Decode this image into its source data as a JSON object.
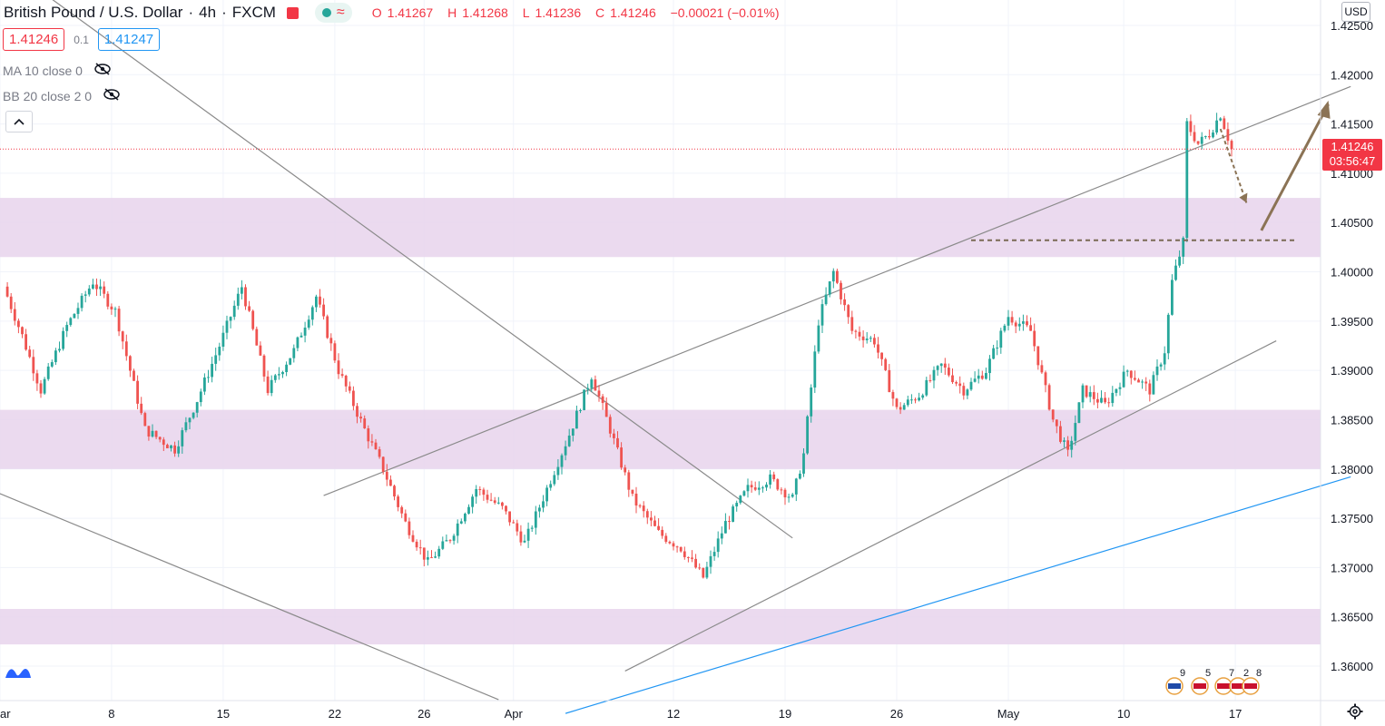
{
  "header": {
    "symbol": "British Pound / U.S. Dollar",
    "interval": "4h",
    "exchange": "FXCM",
    "wave_icon": "≈",
    "open_label": "O",
    "open": "1.41267",
    "high_label": "H",
    "high": "1.41268",
    "low_label": "L",
    "low": "1.41236",
    "close_label": "C",
    "close": "1.41246",
    "change": "−0.00021 (−0.01%)"
  },
  "quote": {
    "bid": "1.41246",
    "spread": "0.1",
    "ask": "1.41247"
  },
  "indicators": [
    {
      "label": "MA 10 close 0",
      "icon": "eye-off-icon"
    },
    {
      "label": "BB 20 close 2 0",
      "icon": "eye-off-icon"
    }
  ],
  "collapse_icon": "chevron-up-icon",
  "currency_button": "USD",
  "last_price": {
    "price": "1.41246",
    "countdown": "03:56:47"
  },
  "events": [
    "9",
    "5",
    "7",
    "2",
    "8"
  ],
  "colors": {
    "up": "#26a69a",
    "down": "#ef5350",
    "zone": "#e8d3ec",
    "trendline": "#8a8a8a",
    "channel_blue": "#2196f3",
    "arrow": "#8b7355",
    "last_price": "#f23645"
  },
  "chart_data": {
    "type": "candlestick",
    "title": "British Pound / U.S. Dollar",
    "timeframe": "4h",
    "x_tick_labels": [
      "ar",
      "8",
      "15",
      "22",
      "26",
      "Apr",
      "12",
      "19",
      "26",
      "May",
      "10",
      "17"
    ],
    "y_tick_labels": [
      "1.42500",
      "1.42000",
      "1.41500",
      "1.41000",
      "1.40500",
      "1.40000",
      "1.39500",
      "1.39000",
      "1.38500",
      "1.38000",
      "1.37500",
      "1.37000",
      "1.36500",
      "1.36000"
    ],
    "ylim": [
      1.3575,
      1.426
    ],
    "grid": true,
    "zones": [
      {
        "from": 1.4015,
        "to": 1.4075
      },
      {
        "from": 1.38,
        "to": 1.386
      },
      {
        "from": 1.3622,
        "to": 1.3658
      }
    ],
    "horizontal_levels": [
      {
        "price": 1.4032,
        "style": "dashed"
      }
    ],
    "last_price": 1.41246,
    "price_path": [
      {
        "t": 0,
        "p": 1.3985
      },
      {
        "t": 5,
        "p": 1.3935
      },
      {
        "t": 10,
        "p": 1.388
      },
      {
        "t": 17,
        "p": 1.3945
      },
      {
        "t": 24,
        "p": 1.399
      },
      {
        "t": 30,
        "p": 1.396
      },
      {
        "t": 38,
        "p": 1.384
      },
      {
        "t": 46,
        "p": 1.382
      },
      {
        "t": 52,
        "p": 1.387
      },
      {
        "t": 58,
        "p": 1.3925
      },
      {
        "t": 64,
        "p": 1.3985
      },
      {
        "t": 71,
        "p": 1.388
      },
      {
        "t": 78,
        "p": 1.392
      },
      {
        "t": 84,
        "p": 1.3975
      },
      {
        "t": 90,
        "p": 1.39
      },
      {
        "t": 97,
        "p": 1.384
      },
      {
        "t": 102,
        "p": 1.38
      },
      {
        "t": 108,
        "p": 1.3745
      },
      {
        "t": 114,
        "p": 1.3705
      },
      {
        "t": 120,
        "p": 1.373
      },
      {
        "t": 127,
        "p": 1.378
      },
      {
        "t": 134,
        "p": 1.376
      },
      {
        "t": 140,
        "p": 1.3725
      },
      {
        "t": 146,
        "p": 1.378
      },
      {
        "t": 152,
        "p": 1.3835
      },
      {
        "t": 158,
        "p": 1.3895
      },
      {
        "t": 163,
        "p": 1.384
      },
      {
        "t": 169,
        "p": 1.377
      },
      {
        "t": 176,
        "p": 1.3735
      },
      {
        "t": 182,
        "p": 1.372
      },
      {
        "t": 188,
        "p": 1.369
      },
      {
        "t": 194,
        "p": 1.3745
      },
      {
        "t": 200,
        "p": 1.378
      },
      {
        "t": 206,
        "p": 1.379
      },
      {
        "t": 212,
        "p": 1.377
      },
      {
        "t": 215,
        "p": 1.3815
      },
      {
        "t": 219,
        "p": 1.395
      },
      {
        "t": 223,
        "p": 1.4
      },
      {
        "t": 228,
        "p": 1.394
      },
      {
        "t": 234,
        "p": 1.393
      },
      {
        "t": 240,
        "p": 1.386
      },
      {
        "t": 246,
        "p": 1.3875
      },
      {
        "t": 252,
        "p": 1.3905
      },
      {
        "t": 258,
        "p": 1.388
      },
      {
        "t": 264,
        "p": 1.39
      },
      {
        "t": 270,
        "p": 1.3955
      },
      {
        "t": 276,
        "p": 1.394
      },
      {
        "t": 282,
        "p": 1.385
      },
      {
        "t": 286,
        "p": 1.3815
      },
      {
        "t": 290,
        "p": 1.388
      },
      {
        "t": 296,
        "p": 1.3865
      },
      {
        "t": 302,
        "p": 1.39
      },
      {
        "t": 308,
        "p": 1.388
      },
      {
        "t": 312,
        "p": 1.392
      },
      {
        "t": 314,
        "p": 1.399
      },
      {
        "t": 317,
        "p": 1.403
      },
      {
        "t": 318,
        "p": 1.415
      },
      {
        "t": 321,
        "p": 1.413
      },
      {
        "t": 324,
        "p": 1.414
      },
      {
        "t": 327,
        "p": 1.416
      },
      {
        "t": 330,
        "p": 1.41246
      }
    ],
    "trendlines": [
      {
        "from": [
          -1,
          1.4315
        ],
        "to": [
          212,
          1.373
        ],
        "color": "gray"
      },
      {
        "from": [
          -1,
          1.3775
        ],
        "to": [
          133,
          1.3566
        ],
        "color": "gray"
      },
      {
        "from": [
          86,
          1.3773
        ],
        "to": [
          362,
          1.4188
        ],
        "color": "gray"
      },
      {
        "from": [
          167,
          1.3595
        ],
        "to": [
          342,
          1.393
        ],
        "color": "gray"
      },
      {
        "from": [
          151,
          1.3552
        ],
        "to": [
          362,
          1.3792
        ],
        "color": "blue"
      }
    ],
    "projection": [
      {
        "from": [
          327,
          1.4145
        ],
        "to": [
          334,
          1.407
        ],
        "style": "dashed"
      },
      {
        "from": [
          338,
          1.4042
        ],
        "to": [
          356,
          1.417
        ],
        "style": "solid"
      }
    ]
  }
}
